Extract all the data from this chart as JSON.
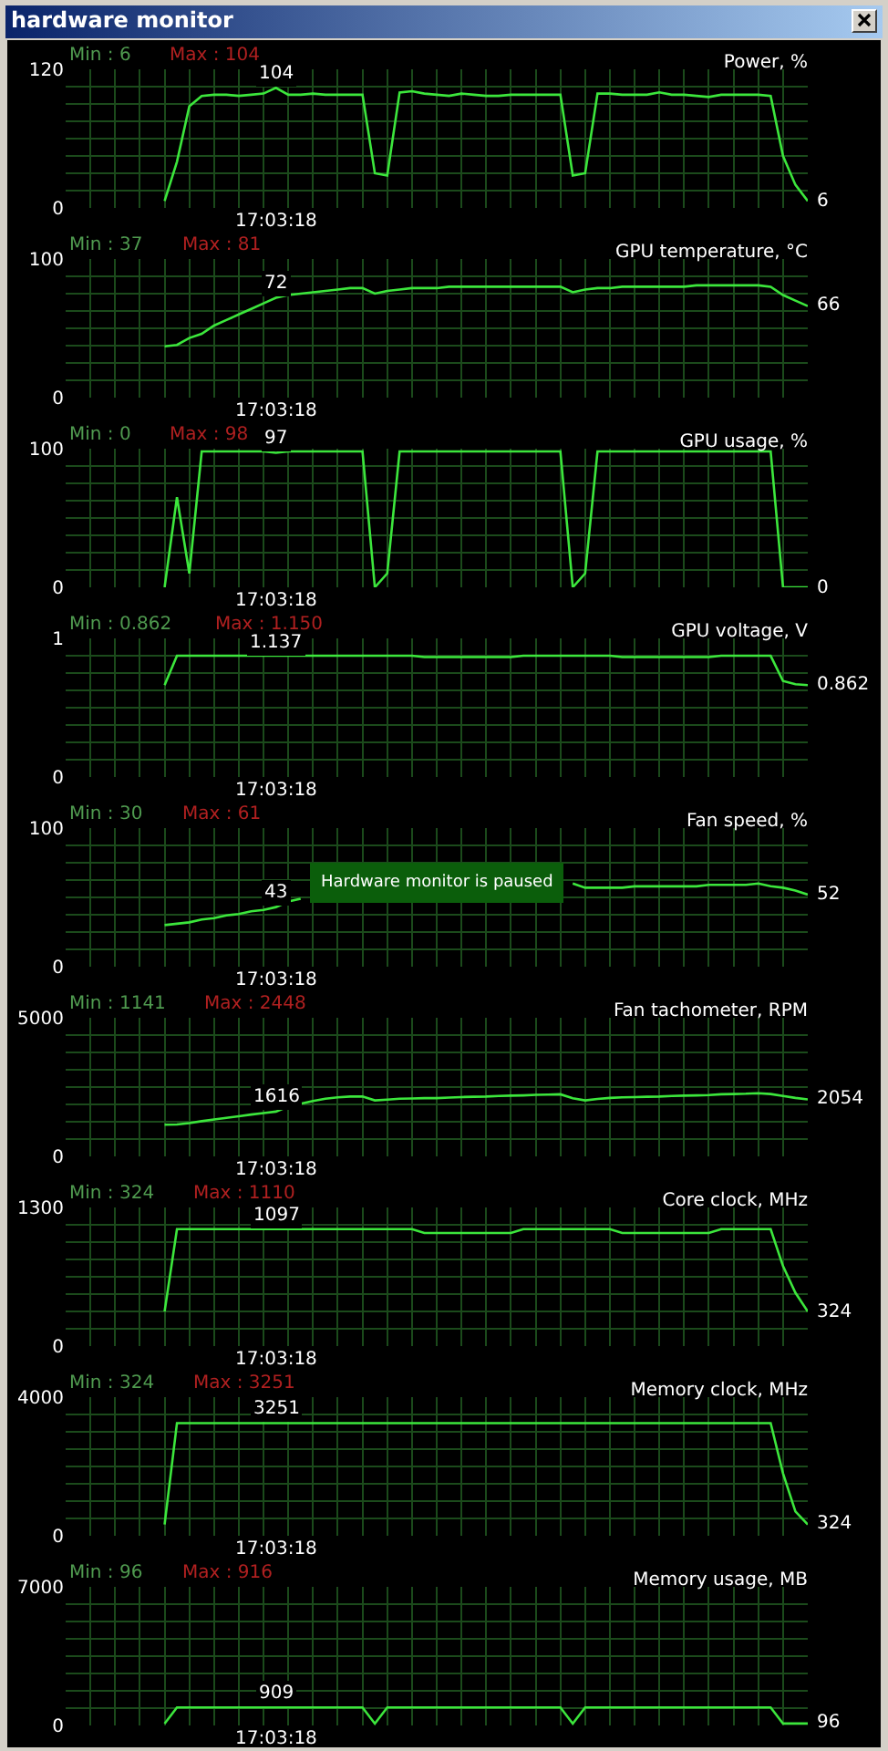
{
  "chart_data": [
    {
      "type": "other",
      "title": "hardware monitor"
    },
    {
      "type": "line",
      "title": "Power, %",
      "categories": [
        null,
        null,
        null,
        null,
        null,
        null,
        null,
        null,
        null,
        null,
        null,
        null,
        null,
        null,
        null,
        null,
        null,
        null,
        null,
        null,
        null,
        null,
        null,
        null,
        null,
        null,
        null,
        null,
        null,
        null,
        null,
        null,
        null,
        null,
        null,
        null,
        null,
        null,
        null,
        null,
        null,
        null,
        null,
        null,
        null,
        null,
        null,
        null,
        null,
        null,
        null,
        null,
        null,
        null,
        null,
        null,
        null,
        null,
        null,
        null,
        null
      ],
      "color": "#3ce63c",
      "grid": true,
      "tick_labels": "y",
      "ylim": [
        0,
        120
      ],
      "yticks": [
        0,
        {
          "value": 15,
          "label": null
        },
        {
          "value": 30,
          "label": null
        },
        {
          "value": 45,
          "label": null
        },
        {
          "value": 60,
          "label": null
        },
        {
          "value": 75,
          "label": null
        },
        {
          "value": 90,
          "label": null
        },
        {
          "value": 105,
          "label": null
        },
        120
      ],
      "values": [
        null,
        null,
        null,
        null,
        null,
        null,
        null,
        null,
        6,
        40,
        88,
        97,
        98,
        98,
        97,
        98,
        99,
        104,
        98,
        98,
        99,
        98,
        98,
        98,
        98,
        30,
        28,
        100,
        101,
        99,
        98,
        97,
        99,
        98,
        97,
        97,
        98,
        98,
        98,
        98,
        98,
        28,
        30,
        99,
        99,
        98,
        98,
        98,
        100,
        98,
        98,
        97,
        96,
        98,
        98,
        98,
        98,
        97,
        45,
        20,
        6
      ],
      "annotations": [
        "Min : 6",
        "Max : 104",
        "17:03:18",
        {
          "text": "104",
          "y": 104
        },
        "6"
      ]
    },
    {
      "type": "line",
      "title": "GPU temperature, °C",
      "categories": [
        null,
        null,
        null,
        null,
        null,
        null,
        null,
        null,
        null,
        null,
        null,
        null,
        null,
        null,
        null,
        null,
        null,
        null,
        null,
        null,
        null,
        null,
        null,
        null,
        null,
        null,
        null,
        null,
        null,
        null,
        null,
        null,
        null,
        null,
        null,
        null,
        null,
        null,
        null,
        null,
        null,
        null,
        null,
        null,
        null,
        null,
        null,
        null,
        null,
        null,
        null,
        null,
        null,
        null,
        null,
        null,
        null,
        null,
        null,
        null,
        null
      ],
      "color": "#3ce63c",
      "grid": true,
      "tick_labels": "y",
      "ylim": [
        0,
        100
      ],
      "yticks": [
        0,
        {
          "value": 12.5,
          "label": null
        },
        {
          "value": 25,
          "label": null
        },
        {
          "value": 37.5,
          "label": null
        },
        {
          "value": 50,
          "label": null
        },
        {
          "value": 62.5,
          "label": null
        },
        {
          "value": 75,
          "label": null
        },
        {
          "value": 87.5,
          "label": null
        },
        100
      ],
      "values": [
        null,
        null,
        null,
        null,
        null,
        null,
        null,
        null,
        37,
        38,
        43,
        46,
        52,
        56,
        60,
        64,
        68,
        72,
        74,
        75,
        76,
        77,
        78,
        79,
        79,
        75,
        77,
        78,
        79,
        79,
        79,
        80,
        80,
        80,
        80,
        80,
        80,
        80,
        80,
        80,
        80,
        76,
        78,
        79,
        79,
        80,
        80,
        80,
        80,
        80,
        80,
        81,
        81,
        81,
        81,
        81,
        81,
        80,
        74,
        70,
        66
      ],
      "annotations": [
        "Min : 37",
        "Max : 81",
        "17:03:18",
        {
          "text": "72",
          "y": 72
        },
        "66"
      ]
    },
    {
      "type": "line",
      "title": "GPU usage, %",
      "categories": [
        null,
        null,
        null,
        null,
        null,
        null,
        null,
        null,
        null,
        null,
        null,
        null,
        null,
        null,
        null,
        null,
        null,
        null,
        null,
        null,
        null,
        null,
        null,
        null,
        null,
        null,
        null,
        null,
        null,
        null,
        null,
        null,
        null,
        null,
        null,
        null,
        null,
        null,
        null,
        null,
        null,
        null,
        null,
        null,
        null,
        null,
        null,
        null,
        null,
        null,
        null,
        null,
        null,
        null,
        null,
        null,
        null,
        null,
        null,
        null,
        null
      ],
      "color": "#3ce63c",
      "grid": true,
      "tick_labels": "y",
      "ylim": [
        0,
        100
      ],
      "yticks": [
        0,
        {
          "value": 12.5,
          "label": null
        },
        {
          "value": 25,
          "label": null
        },
        {
          "value": 37.5,
          "label": null
        },
        {
          "value": 50,
          "label": null
        },
        {
          "value": 62.5,
          "label": null
        },
        {
          "value": 75,
          "label": null
        },
        {
          "value": 87.5,
          "label": null
        },
        100
      ],
      "values": [
        null,
        null,
        null,
        null,
        null,
        null,
        null,
        null,
        0,
        65,
        10,
        98,
        98,
        98,
        98,
        98,
        98,
        97,
        98,
        98,
        98,
        98,
        98,
        98,
        98,
        0,
        10,
        98,
        98,
        98,
        98,
        98,
        98,
        98,
        98,
        98,
        98,
        98,
        98,
        98,
        98,
        0,
        10,
        98,
        98,
        98,
        98,
        98,
        98,
        98,
        98,
        98,
        98,
        98,
        98,
        98,
        98,
        98,
        0,
        0,
        0
      ],
      "annotations": [
        "Min : 0",
        "Max : 98",
        "17:03:18",
        {
          "text": "97",
          "y": 97
        },
        "0"
      ]
    },
    {
      "type": "line",
      "title": "GPU voltage, V",
      "categories": [
        null,
        null,
        null,
        null,
        null,
        null,
        null,
        null,
        null,
        null,
        null,
        null,
        null,
        null,
        null,
        null,
        null,
        null,
        null,
        null,
        null,
        null,
        null,
        null,
        null,
        null,
        null,
        null,
        null,
        null,
        null,
        null,
        null,
        null,
        null,
        null,
        null,
        null,
        null,
        null,
        null,
        null,
        null,
        null,
        null,
        null,
        null,
        null,
        null,
        null,
        null,
        null,
        null,
        null,
        null,
        null,
        null,
        null,
        null,
        null,
        null
      ],
      "color": "#3ce63c",
      "grid": true,
      "tick_labels": "y",
      "ylim": [
        0,
        1.3
      ],
      "yticks": [
        0,
        {
          "value": 0.1625,
          "label": null
        },
        {
          "value": 0.325,
          "label": null
        },
        {
          "value": 0.4875,
          "label": null
        },
        {
          "value": 0.65,
          "label": null
        },
        {
          "value": 0.8125,
          "label": null
        },
        {
          "value": 0.975,
          "label": null
        },
        {
          "value": 1.1375,
          "label": null
        },
        {
          "value": 1.3,
          "label": "1"
        }
      ],
      "values": [
        null,
        null,
        null,
        null,
        null,
        null,
        null,
        null,
        0.862,
        1.137,
        1.137,
        1.137,
        1.137,
        1.137,
        1.137,
        1.137,
        1.137,
        1.137,
        1.137,
        1.137,
        1.137,
        1.137,
        1.137,
        1.137,
        1.137,
        1.137,
        1.137,
        1.137,
        1.137,
        1.125,
        1.125,
        1.125,
        1.125,
        1.125,
        1.125,
        1.125,
        1.125,
        1.137,
        1.137,
        1.137,
        1.137,
        1.137,
        1.137,
        1.137,
        1.137,
        1.125,
        1.125,
        1.125,
        1.125,
        1.125,
        1.125,
        1.125,
        1.125,
        1.137,
        1.137,
        1.137,
        1.137,
        1.137,
        0.9,
        0.87,
        0.862
      ],
      "annotations": [
        "Min : 0.862",
        "Max : 1.150",
        "17:03:18",
        {
          "text": "1.137",
          "y": 1.137
        },
        "0.862"
      ]
    },
    {
      "type": "line",
      "title": "Fan speed, %",
      "categories": [
        null,
        null,
        null,
        null,
        null,
        null,
        null,
        null,
        null,
        null,
        null,
        null,
        null,
        null,
        null,
        null,
        null,
        null,
        null,
        null,
        null,
        null,
        null,
        null,
        null,
        null,
        null,
        null,
        null,
        null,
        null,
        null,
        null,
        null,
        null,
        null,
        null,
        null,
        null,
        null,
        null,
        null,
        null,
        null,
        null,
        null,
        null,
        null,
        null,
        null,
        null,
        null,
        null,
        null,
        null,
        null,
        null,
        null,
        null,
        null,
        null
      ],
      "color": "#3ce63c",
      "grid": true,
      "tick_labels": "y",
      "ylim": [
        0,
        100
      ],
      "yticks": [
        0,
        {
          "value": 12.5,
          "label": null
        },
        {
          "value": 25,
          "label": null
        },
        {
          "value": 37.5,
          "label": null
        },
        {
          "value": 50,
          "label": null
        },
        {
          "value": 62.5,
          "label": null
        },
        {
          "value": 75,
          "label": null
        },
        {
          "value": 87.5,
          "label": null
        },
        100
      ],
      "values": [
        null,
        null,
        null,
        null,
        null,
        null,
        null,
        null,
        30,
        31,
        32,
        34,
        35,
        37,
        38,
        40,
        41,
        43,
        47,
        49,
        null,
        null,
        null,
        null,
        null,
        null,
        null,
        null,
        null,
        null,
        null,
        null,
        null,
        null,
        null,
        null,
        null,
        null,
        null,
        null,
        null,
        60,
        57,
        57,
        57,
        57,
        58,
        58,
        58,
        58,
        58,
        58,
        59,
        59,
        59,
        59,
        60,
        58,
        57,
        55,
        52
      ],
      "annotations": [
        "Min : 30",
        "Max : 61",
        "17:03:18",
        {
          "text": "43",
          "y": 43
        },
        "52",
        "Hardware monitor is paused"
      ]
    },
    {
      "type": "line",
      "title": "Fan tachometer, RPM",
      "categories": [
        null,
        null,
        null,
        null,
        null,
        null,
        null,
        null,
        null,
        null,
        null,
        null,
        null,
        null,
        null,
        null,
        null,
        null,
        null,
        null,
        null,
        null,
        null,
        null,
        null,
        null,
        null,
        null,
        null,
        null,
        null,
        null,
        null,
        null,
        null,
        null,
        null,
        null,
        null,
        null,
        null,
        null,
        null,
        null,
        null,
        null,
        null,
        null,
        null,
        null,
        null,
        null,
        null,
        null,
        null,
        null,
        null,
        null,
        null,
        null,
        null
      ],
      "color": "#3ce63c",
      "grid": true,
      "tick_labels": "y",
      "ylim": [
        0,
        5000
      ],
      "yticks": [
        0,
        {
          "value": 625,
          "label": null
        },
        {
          "value": 1250,
          "label": null
        },
        {
          "value": 1875,
          "label": null
        },
        {
          "value": 2500,
          "label": null
        },
        {
          "value": 3125,
          "label": null
        },
        {
          "value": 3750,
          "label": null
        },
        {
          "value": 4375,
          "label": null
        },
        5000
      ],
      "values": [
        null,
        null,
        null,
        null,
        null,
        null,
        null,
        null,
        1141,
        1150,
        1200,
        1270,
        1330,
        1390,
        1450,
        1510,
        1560,
        1616,
        1800,
        1900,
        2000,
        2080,
        2130,
        2160,
        2160,
        2020,
        2050,
        2080,
        2090,
        2100,
        2100,
        2120,
        2140,
        2150,
        2160,
        2180,
        2190,
        2200,
        2220,
        2230,
        2240,
        2100,
        2020,
        2070,
        2110,
        2130,
        2140,
        2150,
        2160,
        2180,
        2190,
        2200,
        2210,
        2240,
        2250,
        2260,
        2280,
        2250,
        2180,
        2110,
        2054
      ],
      "annotations": [
        "Min : 1141",
        "Max : 2448",
        "17:03:18",
        {
          "text": "1616",
          "y": 1616
        },
        "2054"
      ]
    },
    {
      "type": "line",
      "title": "Core clock, MHz",
      "categories": [
        null,
        null,
        null,
        null,
        null,
        null,
        null,
        null,
        null,
        null,
        null,
        null,
        null,
        null,
        null,
        null,
        null,
        null,
        null,
        null,
        null,
        null,
        null,
        null,
        null,
        null,
        null,
        null,
        null,
        null,
        null,
        null,
        null,
        null,
        null,
        null,
        null,
        null,
        null,
        null,
        null,
        null,
        null,
        null,
        null,
        null,
        null,
        null,
        null,
        null,
        null,
        null,
        null,
        null,
        null,
        null,
        null,
        null,
        null,
        null,
        null
      ],
      "color": "#3ce63c",
      "grid": true,
      "tick_labels": "y",
      "ylim": [
        0,
        1300
      ],
      "yticks": [
        0,
        {
          "value": 162.5,
          "label": null
        },
        {
          "value": 325,
          "label": null
        },
        {
          "value": 487.5,
          "label": null
        },
        {
          "value": 650,
          "label": null
        },
        {
          "value": 812.5,
          "label": null
        },
        {
          "value": 975,
          "label": null
        },
        {
          "value": 1137.5,
          "label": null
        },
        1300
      ],
      "values": [
        null,
        null,
        null,
        null,
        null,
        null,
        null,
        null,
        324,
        1097,
        1097,
        1097,
        1097,
        1097,
        1097,
        1097,
        1097,
        1097,
        1097,
        1097,
        1097,
        1097,
        1097,
        1097,
        1097,
        1097,
        1097,
        1097,
        1097,
        1060,
        1060,
        1060,
        1060,
        1060,
        1060,
        1060,
        1060,
        1097,
        1097,
        1097,
        1097,
        1097,
        1097,
        1097,
        1097,
        1060,
        1060,
        1060,
        1060,
        1060,
        1060,
        1060,
        1060,
        1097,
        1097,
        1097,
        1097,
        1097,
        750,
        500,
        324
      ],
      "annotations": [
        "Min : 324",
        "Max : 1110",
        "17:03:18",
        {
          "text": "1097",
          "y": 1097
        },
        "324"
      ]
    },
    {
      "type": "line",
      "title": "Memory clock, MHz",
      "categories": [
        null,
        null,
        null,
        null,
        null,
        null,
        null,
        null,
        null,
        null,
        null,
        null,
        null,
        null,
        null,
        null,
        null,
        null,
        null,
        null,
        null,
        null,
        null,
        null,
        null,
        null,
        null,
        null,
        null,
        null,
        null,
        null,
        null,
        null,
        null,
        null,
        null,
        null,
        null,
        null,
        null,
        null,
        null,
        null,
        null,
        null,
        null,
        null,
        null,
        null,
        null,
        null,
        null,
        null,
        null,
        null,
        null,
        null,
        null,
        null,
        null
      ],
      "color": "#3ce63c",
      "grid": true,
      "tick_labels": "y",
      "ylim": [
        0,
        4000
      ],
      "yticks": [
        0,
        {
          "value": 500,
          "label": null
        },
        {
          "value": 1000,
          "label": null
        },
        {
          "value": 1500,
          "label": null
        },
        {
          "value": 2000,
          "label": null
        },
        {
          "value": 2500,
          "label": null
        },
        {
          "value": 3000,
          "label": null
        },
        {
          "value": 3500,
          "label": null
        },
        4000
      ],
      "values": [
        null,
        null,
        null,
        null,
        null,
        null,
        null,
        null,
        324,
        3251,
        3251,
        3251,
        3251,
        3251,
        3251,
        3251,
        3251,
        3251,
        3251,
        3251,
        3251,
        3251,
        3251,
        3251,
        3251,
        3251,
        3251,
        3251,
        3251,
        3251,
        3251,
        3251,
        3251,
        3251,
        3251,
        3251,
        3251,
        3251,
        3251,
        3251,
        3251,
        3251,
        3251,
        3251,
        3251,
        3251,
        3251,
        3251,
        3251,
        3251,
        3251,
        3251,
        3251,
        3251,
        3251,
        3251,
        3251,
        3251,
        1800,
        700,
        324
      ],
      "annotations": [
        "Min : 324",
        "Max : 3251",
        "17:03:18",
        {
          "text": "3251",
          "y": 3251
        },
        "324"
      ]
    },
    {
      "type": "line",
      "title": "Memory usage, MB",
      "categories": [
        null,
        null,
        null,
        null,
        null,
        null,
        null,
        null,
        null,
        null,
        null,
        null,
        null,
        null,
        null,
        null,
        null,
        null,
        null,
        null,
        null,
        null,
        null,
        null,
        null,
        null,
        null,
        null,
        null,
        null,
        null,
        null,
        null,
        null,
        null,
        null,
        null,
        null,
        null,
        null,
        null,
        null,
        null,
        null,
        null,
        null,
        null,
        null,
        null,
        null,
        null,
        null,
        null,
        null,
        null,
        null,
        null,
        null,
        null,
        null,
        null
      ],
      "color": "#3ce63c",
      "grid": true,
      "tick_labels": "y",
      "ylim": [
        0,
        7000
      ],
      "yticks": [
        0,
        {
          "value": 875,
          "label": null
        },
        {
          "value": 1750,
          "label": null
        },
        {
          "value": 2625,
          "label": null
        },
        {
          "value": 3500,
          "label": null
        },
        {
          "value": 4375,
          "label": null
        },
        {
          "value": 5250,
          "label": null
        },
        {
          "value": 6125,
          "label": null
        },
        7000
      ],
      "values": [
        null,
        null,
        null,
        null,
        null,
        null,
        null,
        null,
        96,
        909,
        909,
        909,
        909,
        909,
        909,
        909,
        909,
        909,
        909,
        909,
        909,
        909,
        909,
        909,
        909,
        96,
        909,
        909,
        909,
        909,
        909,
        909,
        909,
        909,
        909,
        909,
        909,
        909,
        909,
        909,
        909,
        96,
        909,
        909,
        909,
        909,
        909,
        909,
        909,
        909,
        909,
        909,
        909,
        909,
        909,
        909,
        909,
        909,
        96,
        96,
        96
      ],
      "annotations": [
        "Min : 96",
        "Max : 916",
        "17:03:18",
        {
          "text": "909",
          "y": 909
        },
        "96"
      ]
    }
  ]
}
